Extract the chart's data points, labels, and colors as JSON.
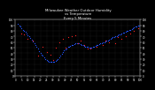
{
  "title": "Milwaukee Weather Outdoor Humidity\nvs Temperature\nEvery 5 Minutes",
  "title_fontsize": 2.8,
  "background_color": "#000000",
  "plot_bg_color": "#000000",
  "grid_color": "#555555",
  "blue_color": "#2255ff",
  "red_color": "#ff2222",
  "point_size": 0.8,
  "xlim": [
    0,
    100
  ],
  "ylim": [
    0,
    100
  ],
  "ytick_step": 10,
  "xtick_step": 5,
  "title_color": "#ffffff",
  "tick_color": "#ffffff",
  "blue_points": [
    [
      2,
      92
    ],
    [
      3,
      90
    ],
    [
      4,
      88
    ],
    [
      5,
      85
    ],
    [
      6,
      82
    ],
    [
      7,
      80
    ],
    [
      8,
      78
    ],
    [
      9,
      75
    ],
    [
      10,
      72
    ],
    [
      11,
      70
    ],
    [
      12,
      67
    ],
    [
      13,
      64
    ],
    [
      14,
      61
    ],
    [
      15,
      58
    ],
    [
      16,
      54
    ],
    [
      17,
      51
    ],
    [
      18,
      48
    ],
    [
      19,
      44
    ],
    [
      20,
      41
    ],
    [
      21,
      38
    ],
    [
      22,
      35
    ],
    [
      23,
      32
    ],
    [
      24,
      30
    ],
    [
      25,
      28
    ],
    [
      26,
      26
    ],
    [
      27,
      25
    ],
    [
      28,
      24
    ],
    [
      29,
      24
    ],
    [
      30,
      24
    ],
    [
      31,
      25
    ],
    [
      32,
      26
    ],
    [
      33,
      28
    ],
    [
      34,
      30
    ],
    [
      35,
      33
    ],
    [
      36,
      36
    ],
    [
      37,
      39
    ],
    [
      38,
      42
    ],
    [
      39,
      45
    ],
    [
      40,
      47
    ],
    [
      41,
      49
    ],
    [
      42,
      51
    ],
    [
      43,
      52
    ],
    [
      44,
      53
    ],
    [
      45,
      54
    ],
    [
      46,
      55
    ],
    [
      47,
      56
    ],
    [
      48,
      57
    ],
    [
      49,
      57
    ],
    [
      50,
      57
    ],
    [
      51,
      57
    ],
    [
      52,
      56
    ],
    [
      53,
      55
    ],
    [
      54,
      54
    ],
    [
      55,
      53
    ],
    [
      56,
      52
    ],
    [
      57,
      51
    ],
    [
      58,
      51
    ],
    [
      59,
      50
    ],
    [
      60,
      50
    ],
    [
      61,
      50
    ],
    [
      62,
      51
    ],
    [
      63,
      52
    ],
    [
      64,
      53
    ],
    [
      65,
      54
    ],
    [
      66,
      55
    ],
    [
      67,
      56
    ],
    [
      68,
      57
    ],
    [
      69,
      58
    ],
    [
      70,
      59
    ],
    [
      71,
      60
    ],
    [
      72,
      61
    ],
    [
      73,
      62
    ],
    [
      74,
      63
    ],
    [
      75,
      64
    ],
    [
      76,
      65
    ],
    [
      77,
      67
    ],
    [
      78,
      68
    ],
    [
      79,
      69
    ],
    [
      80,
      70
    ],
    [
      81,
      71
    ],
    [
      82,
      72
    ],
    [
      83,
      73
    ],
    [
      84,
      74
    ],
    [
      85,
      75
    ],
    [
      86,
      76
    ],
    [
      87,
      77
    ],
    [
      88,
      78
    ],
    [
      89,
      79
    ],
    [
      90,
      80
    ],
    [
      91,
      81
    ],
    [
      92,
      82
    ],
    [
      93,
      83
    ],
    [
      94,
      85
    ],
    [
      95,
      86
    ],
    [
      96,
      87
    ],
    [
      97,
      88
    ],
    [
      98,
      89
    ],
    [
      99,
      90
    ]
  ],
  "red_points": [
    [
      5,
      75
    ],
    [
      7,
      73
    ],
    [
      14,
      62
    ],
    [
      22,
      52
    ],
    [
      25,
      42
    ],
    [
      28,
      38
    ],
    [
      32,
      50
    ],
    [
      35,
      60
    ],
    [
      38,
      65
    ],
    [
      42,
      68
    ],
    [
      45,
      70
    ],
    [
      48,
      72
    ],
    [
      52,
      62
    ],
    [
      55,
      55
    ],
    [
      58,
      48
    ],
    [
      65,
      52
    ],
    [
      70,
      55
    ],
    [
      75,
      60
    ],
    [
      80,
      58
    ],
    [
      85,
      65
    ],
    [
      88,
      70
    ],
    [
      92,
      75
    ],
    [
      95,
      80
    ],
    [
      98,
      85
    ],
    [
      10,
      65
    ],
    [
      18,
      35
    ],
    [
      30,
      28
    ],
    [
      40,
      50
    ],
    [
      60,
      48
    ],
    [
      72,
      62
    ],
    [
      82,
      68
    ],
    [
      50,
      58
    ]
  ]
}
